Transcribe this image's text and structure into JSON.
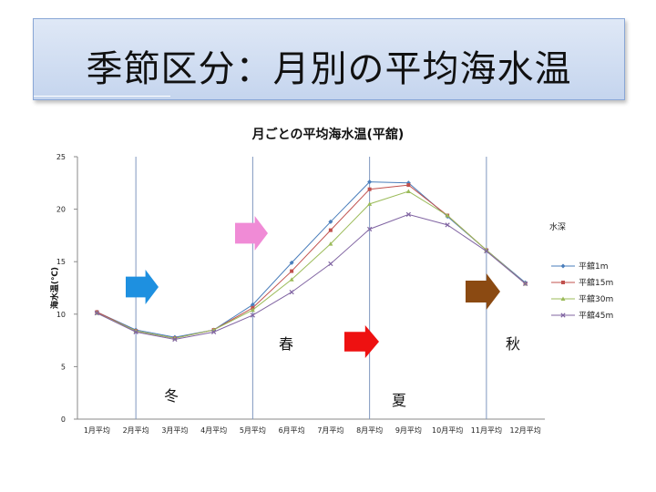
{
  "slide": {
    "title": "季節区分：月別の平均海水温"
  },
  "chart_data": {
    "type": "line",
    "title": "月ごとの平均海水温(平舘)",
    "ylabel": "海水温(℃)",
    "ylim": [
      0,
      25
    ],
    "yticks": [
      0,
      5,
      10,
      15,
      20,
      25
    ],
    "categories": [
      "1月平均",
      "2月平均",
      "3月平均",
      "4月平均",
      "5月平均",
      "6月平均",
      "7月平均",
      "8月平均",
      "9月平均",
      "10月平均",
      "11月平均",
      "12月平均"
    ],
    "legend_title": "水深",
    "legend_position": "right",
    "series": [
      {
        "name": "平舘1m",
        "color": "#4a7ebb",
        "marker": "diamond",
        "values": [
          10.2,
          8.5,
          7.8,
          8.5,
          10.9,
          14.9,
          18.8,
          22.6,
          22.5,
          19.3,
          16.1,
          13.0
        ]
      },
      {
        "name": "平舘15m",
        "color": "#c0504d",
        "marker": "square",
        "values": [
          10.2,
          8.4,
          7.7,
          8.5,
          10.6,
          14.1,
          18.0,
          21.9,
          22.3,
          19.4,
          16.1,
          12.9
        ]
      },
      {
        "name": "平舘30m",
        "color": "#9bbb59",
        "marker": "triangle",
        "values": [
          10.1,
          8.4,
          7.7,
          8.5,
          10.4,
          13.3,
          16.7,
          20.5,
          21.7,
          19.4,
          16.1,
          12.9
        ]
      },
      {
        "name": "平舘45m",
        "color": "#8064a2",
        "marker": "x",
        "values": [
          10.1,
          8.3,
          7.6,
          8.3,
          9.9,
          12.1,
          14.8,
          18.1,
          19.5,
          18.5,
          16.0,
          12.9
        ]
      }
    ],
    "season_dividers_after_month": [
      1,
      4,
      7,
      10
    ],
    "seasons": {
      "winter": "冬",
      "spring": "春",
      "summer": "夏",
      "autumn": "秋"
    },
    "arrows": [
      {
        "id": "winter-arrow",
        "color": "#1e90e0"
      },
      {
        "id": "spring-arrow",
        "color": "#f08bd6"
      },
      {
        "id": "summer-arrow",
        "color": "#ee1111"
      },
      {
        "id": "autumn-arrow",
        "color": "#8b4a12"
      }
    ]
  }
}
